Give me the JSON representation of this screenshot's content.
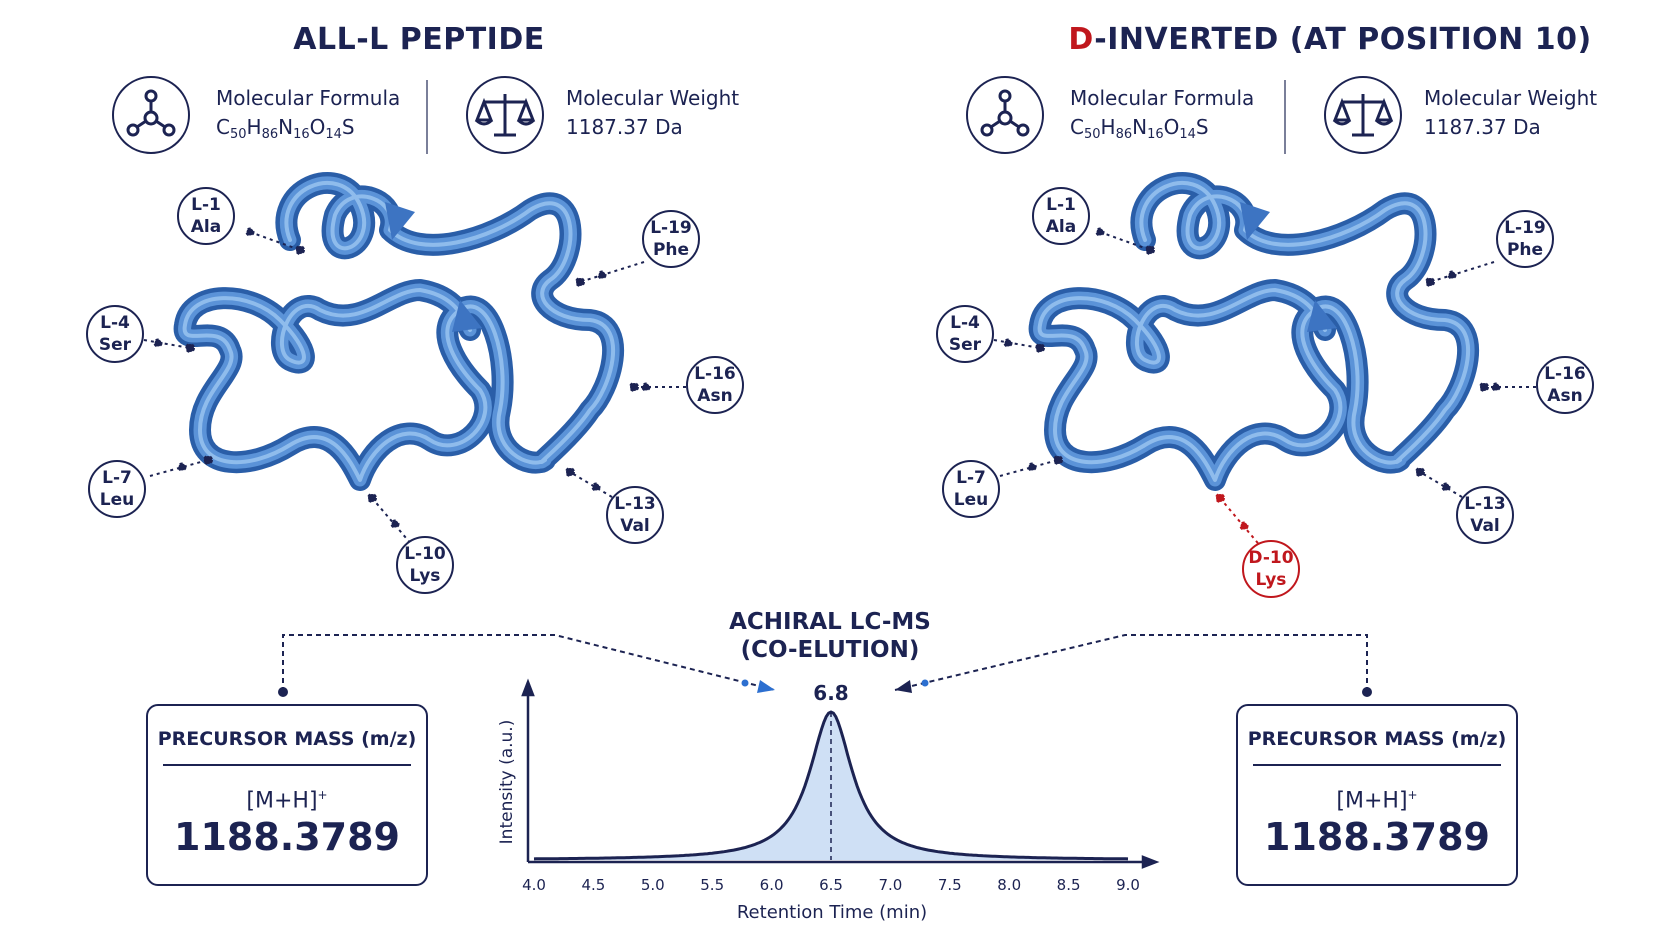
{
  "left_panel": {
    "title": "ALL-L PEPTIDE",
    "formula_label": "Molecular Formula",
    "formula_parts": [
      "C",
      "50",
      "H",
      "86",
      "N",
      "16",
      "O",
      "14",
      "S"
    ],
    "weight_label": "Molecular Weight",
    "weight_value": "1187.37 Da",
    "residues": [
      {
        "line1": "L-1",
        "line2": "Ala"
      },
      {
        "line1": "L-19",
        "line2": "Phe"
      },
      {
        "line1": "L-4",
        "line2": "Ser"
      },
      {
        "line1": "L-16",
        "line2": "Asn"
      },
      {
        "line1": "L-7",
        "line2": "Leu"
      },
      {
        "line1": "L-13",
        "line2": "Val"
      },
      {
        "line1": "L-10",
        "line2": "Lys"
      }
    ],
    "mass_title": "PRECURSOR MASS (m/z)",
    "ion": "[M+H]",
    "ion_charge": "+",
    "mass_value": "1188.3789"
  },
  "right_panel": {
    "title_highlight": "D",
    "title_rest": "-INVERTED (AT POSITION 10)",
    "formula_label": "Molecular Formula",
    "formula_parts": [
      "C",
      "50",
      "H",
      "86",
      "N",
      "16",
      "O",
      "14",
      "S"
    ],
    "weight_label": "Molecular Weight",
    "weight_value": "1187.37 Da",
    "residues": [
      {
        "line1": "L-1",
        "line2": "Ala"
      },
      {
        "line1": "L-19",
        "line2": "Phe"
      },
      {
        "line1": "L-4",
        "line2": "Ser"
      },
      {
        "line1": "L-16",
        "line2": "Asn"
      },
      {
        "line1": "L-7",
        "line2": "Leu"
      },
      {
        "line1": "L-13",
        "line2": "Val"
      },
      {
        "line1": "D-10",
        "line2": "Lys"
      }
    ],
    "mass_title": "PRECURSOR MASS (m/z)",
    "ion": "[M+H]",
    "ion_charge": "+",
    "mass_value": "1188.3789"
  },
  "chromatogram": {
    "title_line1": "ACHIRAL LC-MS",
    "title_line2": "(CO-ELUTION)",
    "peak_label": "6.8",
    "xlabel": "Retention Time (min)",
    "ylabel": "Intensity (a.u.)",
    "x_ticks": [
      "4.0",
      "4.5",
      "5.0",
      "5.5",
      "6.0",
      "6.5",
      "7.0",
      "7.5",
      "8.0",
      "8.5",
      "9.0"
    ]
  },
  "colors": {
    "navy": "#1c2352",
    "ribbon": "#4a82cc",
    "highlight": "#c0171d",
    "peak_fill": "#cfe0f5"
  }
}
